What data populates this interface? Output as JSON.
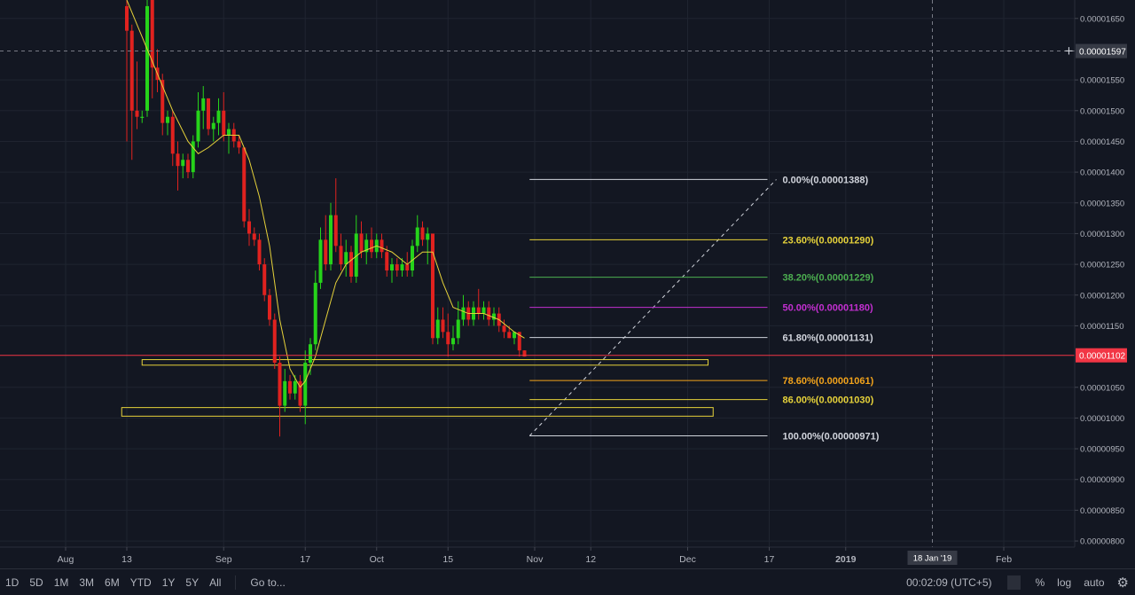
{
  "chart_data": {
    "type": "candlestick",
    "x_ticks": [
      "Aug",
      "13",
      "Sep",
      "17",
      "Oct",
      "15",
      "Nov",
      "12",
      "Dec",
      "17",
      "2019",
      "Feb"
    ],
    "x_tick_dates": [
      "2018-08-01",
      "2018-08-13",
      "2018-09-01",
      "2018-09-17",
      "2018-10-01",
      "2018-10-15",
      "2018-11-01",
      "2018-11-12",
      "2018-12-01",
      "2018-12-17",
      "2019-01-01",
      "2019-02-01"
    ],
    "crosshair_x_label": "18 Jan '19",
    "crosshair_x_date": "2019-01-18",
    "y_ticks": [
      "0.00001650",
      "0.00001550",
      "0.00001500",
      "0.00001450",
      "0.00001400",
      "0.00001350",
      "0.00001300",
      "0.00001250",
      "0.00001200",
      "0.00001150",
      "0.00001050",
      "0.00001000",
      "0.00000950",
      "0.00000900",
      "0.00000850",
      "0.00000800"
    ],
    "ylim": [
      7.9e-06,
      1.68e-05
    ],
    "price_labels": {
      "crosshair_price": "0.00001597",
      "crosshair_value": 1.597e-05,
      "last_price": "0.00001102",
      "last_value": 1.102e-05,
      "last_color": "#f23645"
    },
    "candles": [
      {
        "date": "2018-08-13",
        "open": 1.67e-05,
        "high": 1.69e-05,
        "low": 1.45e-05,
        "close": 1.63e-05
      },
      {
        "date": "2018-08-14",
        "open": 1.63e-05,
        "high": 1.64e-05,
        "low": 1.42e-05,
        "close": 1.5e-05
      },
      {
        "date": "2018-08-15",
        "open": 1.5e-05,
        "high": 1.58e-05,
        "low": 1.47e-05,
        "close": 1.49e-05
      },
      {
        "date": "2018-08-16",
        "open": 1.49e-05,
        "high": 1.5e-05,
        "low": 1.48e-05,
        "close": 1.49e-05
      },
      {
        "date": "2018-08-17",
        "open": 1.5e-05,
        "high": 1.69e-05,
        "low": 1.49e-05,
        "close": 1.67e-05
      },
      {
        "date": "2018-08-18",
        "open": 1.68e-05,
        "high": 1.69e-05,
        "low": 1.52e-05,
        "close": 1.57e-05
      },
      {
        "date": "2018-08-19",
        "open": 1.57e-05,
        "high": 1.6e-05,
        "low": 1.53e-05,
        "close": 1.55e-05
      },
      {
        "date": "2018-08-20",
        "open": 1.55e-05,
        "high": 1.56e-05,
        "low": 1.46e-05,
        "close": 1.48e-05
      },
      {
        "date": "2018-08-21",
        "open": 1.48e-05,
        "high": 1.5e-05,
        "low": 1.46e-05,
        "close": 1.49e-05
      },
      {
        "date": "2018-08-22",
        "open": 1.49e-05,
        "high": 1.5e-05,
        "low": 1.41e-05,
        "close": 1.43e-05
      },
      {
        "date": "2018-08-23",
        "open": 1.43e-05,
        "high": 1.45e-05,
        "low": 1.37e-05,
        "close": 1.41e-05
      },
      {
        "date": "2018-08-24",
        "open": 1.41e-05,
        "high": 1.43e-05,
        "low": 1.39e-05,
        "close": 1.42e-05
      },
      {
        "date": "2018-08-25",
        "open": 1.42e-05,
        "high": 1.43e-05,
        "low": 1.39e-05,
        "close": 1.4e-05
      },
      {
        "date": "2018-08-26",
        "open": 1.4e-05,
        "high": 1.46e-05,
        "low": 1.39e-05,
        "close": 1.45e-05
      },
      {
        "date": "2018-08-27",
        "open": 1.45e-05,
        "high": 1.53e-05,
        "low": 1.44e-05,
        "close": 1.5e-05
      },
      {
        "date": "2018-08-28",
        "open": 1.5e-05,
        "high": 1.54e-05,
        "low": 1.47e-05,
        "close": 1.52e-05
      },
      {
        "date": "2018-08-29",
        "open": 1.52e-05,
        "high": 1.52e-05,
        "low": 1.46e-05,
        "close": 1.47e-05
      },
      {
        "date": "2018-08-30",
        "open": 1.47e-05,
        "high": 1.49e-05,
        "low": 1.45e-05,
        "close": 1.48e-05
      },
      {
        "date": "2018-08-31",
        "open": 1.48e-05,
        "high": 1.52e-05,
        "low": 1.46e-05,
        "close": 1.5e-05
      },
      {
        "date": "2018-09-01",
        "open": 1.5e-05,
        "high": 1.53e-05,
        "low": 1.45e-05,
        "close": 1.46e-05
      },
      {
        "date": "2018-09-02",
        "open": 1.46e-05,
        "high": 1.48e-05,
        "low": 1.43e-05,
        "close": 1.47e-05
      },
      {
        "date": "2018-09-03",
        "open": 1.47e-05,
        "high": 1.48e-05,
        "low": 1.44e-05,
        "close": 1.45e-05
      },
      {
        "date": "2018-09-04",
        "open": 1.45e-05,
        "high": 1.46e-05,
        "low": 1.43e-05,
        "close": 1.44e-05
      },
      {
        "date": "2018-09-05",
        "open": 1.44e-05,
        "high": 1.44e-05,
        "low": 1.31e-05,
        "close": 1.32e-05
      },
      {
        "date": "2018-09-06",
        "open": 1.32e-05,
        "high": 1.34e-05,
        "low": 1.28e-05,
        "close": 1.3e-05
      },
      {
        "date": "2018-09-07",
        "open": 1.3e-05,
        "high": 1.31e-05,
        "low": 1.28e-05,
        "close": 1.29e-05
      },
      {
        "date": "2018-09-08",
        "open": 1.29e-05,
        "high": 1.3e-05,
        "low": 1.24e-05,
        "close": 1.25e-05
      },
      {
        "date": "2018-09-09",
        "open": 1.25e-05,
        "high": 1.26e-05,
        "low": 1.19e-05,
        "close": 1.2e-05
      },
      {
        "date": "2018-09-10",
        "open": 1.2e-05,
        "high": 1.21e-05,
        "low": 1.15e-05,
        "close": 1.16e-05
      },
      {
        "date": "2018-09-11",
        "open": 1.16e-05,
        "high": 1.17e-05,
        "low": 1.08e-05,
        "close": 1.09e-05
      },
      {
        "date": "2018-09-12",
        "open": 1.09e-05,
        "high": 1.1e-05,
        "low": 9.7e-06,
        "close": 1.02e-05
      },
      {
        "date": "2018-09-13",
        "open": 1.02e-05,
        "high": 1.08e-05,
        "low": 1.01e-05,
        "close": 1.06e-05
      },
      {
        "date": "2018-09-14",
        "open": 1.06e-05,
        "high": 1.07e-05,
        "low": 1.03e-05,
        "close": 1.04e-05
      },
      {
        "date": "2018-09-15",
        "open": 1.04e-05,
        "high": 1.07e-05,
        "low": 1.03e-05,
        "close": 1.06e-05
      },
      {
        "date": "2018-09-16",
        "open": 1.06e-05,
        "high": 1.07e-05,
        "low": 1.01e-05,
        "close": 1.02e-05
      },
      {
        "date": "2018-09-17",
        "open": 1.02e-05,
        "high": 1.11e-05,
        "low": 9.9e-06,
        "close": 1.09e-05
      },
      {
        "date": "2018-09-18",
        "open": 1.09e-05,
        "high": 1.13e-05,
        "low": 1.07e-05,
        "close": 1.12e-05
      },
      {
        "date": "2018-09-19",
        "open": 1.12e-05,
        "high": 1.24e-05,
        "low": 1.11e-05,
        "close": 1.22e-05
      },
      {
        "date": "2018-09-20",
        "open": 1.22e-05,
        "high": 1.31e-05,
        "low": 1.21e-05,
        "close": 1.29e-05
      },
      {
        "date": "2018-09-21",
        "open": 1.29e-05,
        "high": 1.33e-05,
        "low": 1.24e-05,
        "close": 1.25e-05
      },
      {
        "date": "2018-09-22",
        "open": 1.25e-05,
        "high": 1.35e-05,
        "low": 1.24e-05,
        "close": 1.33e-05
      },
      {
        "date": "2018-09-23",
        "open": 1.33e-05,
        "high": 1.39e-05,
        "low": 1.27e-05,
        "close": 1.28e-05
      },
      {
        "date": "2018-09-24",
        "open": 1.28e-05,
        "high": 1.3e-05,
        "low": 1.24e-05,
        "close": 1.25e-05
      },
      {
        "date": "2018-09-25",
        "open": 1.25e-05,
        "high": 1.29e-05,
        "low": 1.23e-05,
        "close": 1.27e-05
      },
      {
        "date": "2018-09-26",
        "open": 1.27e-05,
        "high": 1.28e-05,
        "low": 1.22e-05,
        "close": 1.23e-05
      },
      {
        "date": "2018-09-27",
        "open": 1.23e-05,
        "high": 1.33e-05,
        "low": 1.22e-05,
        "close": 1.3e-05
      },
      {
        "date": "2018-09-28",
        "open": 1.3e-05,
        "high": 1.32e-05,
        "low": 1.26e-05,
        "close": 1.27e-05
      },
      {
        "date": "2018-09-29",
        "open": 1.27e-05,
        "high": 1.3e-05,
        "low": 1.25e-05,
        "close": 1.29e-05
      },
      {
        "date": "2018-09-30",
        "open": 1.29e-05,
        "high": 1.31e-05,
        "low": 1.26e-05,
        "close": 1.27e-05
      },
      {
        "date": "2018-10-01",
        "open": 1.27e-05,
        "high": 1.3e-05,
        "low": 1.26e-05,
        "close": 1.29e-05
      },
      {
        "date": "2018-10-02",
        "open": 1.29e-05,
        "high": 1.3e-05,
        "low": 1.26e-05,
        "close": 1.27e-05
      },
      {
        "date": "2018-10-03",
        "open": 1.27e-05,
        "high": 1.28e-05,
        "low": 1.23e-05,
        "close": 1.24e-05
      },
      {
        "date": "2018-10-04",
        "open": 1.24e-05,
        "high": 1.26e-05,
        "low": 1.22e-05,
        "close": 1.25e-05
      },
      {
        "date": "2018-10-05",
        "open": 1.25e-05,
        "high": 1.26e-05,
        "low": 1.23e-05,
        "close": 1.24e-05
      },
      {
        "date": "2018-10-06",
        "open": 1.24e-05,
        "high": 1.26e-05,
        "low": 1.23e-05,
        "close": 1.25e-05
      },
      {
        "date": "2018-10-07",
        "open": 1.25e-05,
        "high": 1.27e-05,
        "low": 1.23e-05,
        "close": 1.24e-05
      },
      {
        "date": "2018-10-08",
        "open": 1.24e-05,
        "high": 1.29e-05,
        "low": 1.23e-05,
        "close": 1.28e-05
      },
      {
        "date": "2018-10-09",
        "open": 1.28e-05,
        "high": 1.33e-05,
        "low": 1.27e-05,
        "close": 1.31e-05
      },
      {
        "date": "2018-10-10",
        "open": 1.31e-05,
        "high": 1.32e-05,
        "low": 1.28e-05,
        "close": 1.29e-05
      },
      {
        "date": "2018-10-11",
        "open": 1.29e-05,
        "high": 1.31e-05,
        "low": 1.25e-05,
        "close": 1.3e-05
      },
      {
        "date": "2018-10-12",
        "open": 1.3e-05,
        "high": 1.3e-05,
        "low": 1.12e-05,
        "close": 1.13e-05
      },
      {
        "date": "2018-10-13",
        "open": 1.13e-05,
        "high": 1.18e-05,
        "low": 1.12e-05,
        "close": 1.16e-05
      },
      {
        "date": "2018-10-14",
        "open": 1.16e-05,
        "high": 1.18e-05,
        "low": 1.13e-05,
        "close": 1.14e-05
      },
      {
        "date": "2018-10-15",
        "open": 1.14e-05,
        "high": 1.17e-05,
        "low": 1.1e-05,
        "close": 1.12e-05
      },
      {
        "date": "2018-10-16",
        "open": 1.12e-05,
        "high": 1.15e-05,
        "low": 1.11e-05,
        "close": 1.13e-05
      },
      {
        "date": "2018-10-17",
        "open": 1.13e-05,
        "high": 1.19e-05,
        "low": 1.12e-05,
        "close": 1.16e-05
      },
      {
        "date": "2018-10-18",
        "open": 1.16e-05,
        "high": 1.2e-05,
        "low": 1.15e-05,
        "close": 1.18e-05
      },
      {
        "date": "2018-10-19",
        "open": 1.18e-05,
        "high": 1.19e-05,
        "low": 1.15e-05,
        "close": 1.16e-05
      },
      {
        "date": "2018-10-20",
        "open": 1.16e-05,
        "high": 1.19e-05,
        "low": 1.15e-05,
        "close": 1.18e-05
      },
      {
        "date": "2018-10-21",
        "open": 1.18e-05,
        "high": 1.21e-05,
        "low": 1.16e-05,
        "close": 1.17e-05
      },
      {
        "date": "2018-10-22",
        "open": 1.17e-05,
        "high": 1.19e-05,
        "low": 1.16e-05,
        "close": 1.18e-05
      },
      {
        "date": "2018-10-23",
        "open": 1.18e-05,
        "high": 1.19e-05,
        "low": 1.15e-05,
        "close": 1.16e-05
      },
      {
        "date": "2018-10-24",
        "open": 1.16e-05,
        "high": 1.18e-05,
        "low": 1.15e-05,
        "close": 1.17e-05
      },
      {
        "date": "2018-10-25",
        "open": 1.17e-05,
        "high": 1.18e-05,
        "low": 1.14e-05,
        "close": 1.15e-05
      },
      {
        "date": "2018-10-26",
        "open": 1.15e-05,
        "high": 1.16e-05,
        "low": 1.13e-05,
        "close": 1.14e-05
      },
      {
        "date": "2018-10-27",
        "open": 1.14e-05,
        "high": 1.15e-05,
        "low": 1.13e-05,
        "close": 1.13e-05
      },
      {
        "date": "2018-10-28",
        "open": 1.13e-05,
        "high": 1.14e-05,
        "low": 1.12e-05,
        "close": 1.14e-05
      },
      {
        "date": "2018-10-29",
        "open": 1.14e-05,
        "high": 1.14e-05,
        "low": 1.1e-05,
        "close": 1.11e-05
      },
      {
        "date": "2018-10-30",
        "open": 1.11e-05,
        "high": 1.11e-05,
        "low": 1.1e-05,
        "close": 1.1e-05
      }
    ],
    "moving_average": {
      "color": "#e6d23a",
      "points": [
        {
          "date": "2018-08-13",
          "value": 1.68e-05
        },
        {
          "date": "2018-08-16",
          "value": 1.62e-05
        },
        {
          "date": "2018-08-19",
          "value": 1.56e-05
        },
        {
          "date": "2018-08-22",
          "value": 1.5e-05
        },
        {
          "date": "2018-08-25",
          "value": 1.45e-05
        },
        {
          "date": "2018-08-27",
          "value": 1.43e-05
        },
        {
          "date": "2018-08-29",
          "value": 1.44e-05
        },
        {
          "date": "2018-09-01",
          "value": 1.46e-05
        },
        {
          "date": "2018-09-04",
          "value": 1.46e-05
        },
        {
          "date": "2018-09-06",
          "value": 1.42e-05
        },
        {
          "date": "2018-09-08",
          "value": 1.36e-05
        },
        {
          "date": "2018-09-10",
          "value": 1.28e-05
        },
        {
          "date": "2018-09-12",
          "value": 1.16e-05
        },
        {
          "date": "2018-09-14",
          "value": 1.08e-05
        },
        {
          "date": "2018-09-16",
          "value": 1.05e-05
        },
        {
          "date": "2018-09-17",
          "value": 1.06e-05
        },
        {
          "date": "2018-09-19",
          "value": 1.1e-05
        },
        {
          "date": "2018-09-21",
          "value": 1.16e-05
        },
        {
          "date": "2018-09-23",
          "value": 1.22e-05
        },
        {
          "date": "2018-09-25",
          "value": 1.25e-05
        },
        {
          "date": "2018-09-28",
          "value": 1.27e-05
        },
        {
          "date": "2018-10-01",
          "value": 1.28e-05
        },
        {
          "date": "2018-10-04",
          "value": 1.27e-05
        },
        {
          "date": "2018-10-07",
          "value": 1.25e-05
        },
        {
          "date": "2018-10-10",
          "value": 1.27e-05
        },
        {
          "date": "2018-10-12",
          "value": 1.27e-05
        },
        {
          "date": "2018-10-14",
          "value": 1.22e-05
        },
        {
          "date": "2018-10-16",
          "value": 1.18e-05
        },
        {
          "date": "2018-10-19",
          "value": 1.17e-05
        },
        {
          "date": "2018-10-22",
          "value": 1.17e-05
        },
        {
          "date": "2018-10-25",
          "value": 1.16e-05
        },
        {
          "date": "2018-10-28",
          "value": 1.14e-05
        },
        {
          "date": "2018-10-30",
          "value": 1.13e-05
        }
      ]
    },
    "fibonacci": {
      "start_date": "2018-10-31",
      "end_date": "2018-12-17",
      "levels": [
        {
          "label": "0.00%(0.00001388)",
          "value": 1.388e-05,
          "color": "#d1d4dc"
        },
        {
          "label": "23.60%(0.00001290)",
          "value": 1.29e-05,
          "color": "#e6d23a"
        },
        {
          "label": "38.20%(0.00001229)",
          "value": 1.229e-05,
          "color": "#4caf50"
        },
        {
          "label": "50.00%(0.00001180)",
          "value": 1.18e-05,
          "color": "#c22fd0"
        },
        {
          "label": "61.80%(0.00001131)",
          "value": 1.131e-05,
          "color": "#d1d4dc"
        },
        {
          "label": "78.60%(0.00001061)",
          "value": 1.061e-05,
          "color": "#f2a31b"
        },
        {
          "label": "86.00%(0.00001030)",
          "value": 1.03e-05,
          "color": "#e6d23a"
        },
        {
          "label": "100.00%(0.00000971)",
          "value": 9.71e-06,
          "color": "#d1d4dc"
        }
      ]
    },
    "support_zones": [
      {
        "start_date": "2018-08-16",
        "end_date": "2018-12-05",
        "top": 1.095e-05,
        "bottom": 1.086e-05,
        "color": "#e6d23a"
      },
      {
        "start_date": "2018-08-12",
        "end_date": "2018-12-06",
        "top": 1.017e-05,
        "bottom": 1.003e-05,
        "color": "#e6d23a"
      }
    ],
    "colors": {
      "background": "#131722",
      "up": "#26d31a",
      "down": "#e0221f",
      "grid": "#1f2430",
      "axis_text": "#b2b5be"
    }
  },
  "toolbar": {
    "timeframes": [
      "1D",
      "5D",
      "1M",
      "3M",
      "6M",
      "YTD",
      "1Y",
      "5Y",
      "All"
    ],
    "goto": "Go to...",
    "clock": "00:02:09 (UTC+5)",
    "percent": "%",
    "log": "log",
    "auto": "auto",
    "settings_icon": "gear-icon"
  }
}
